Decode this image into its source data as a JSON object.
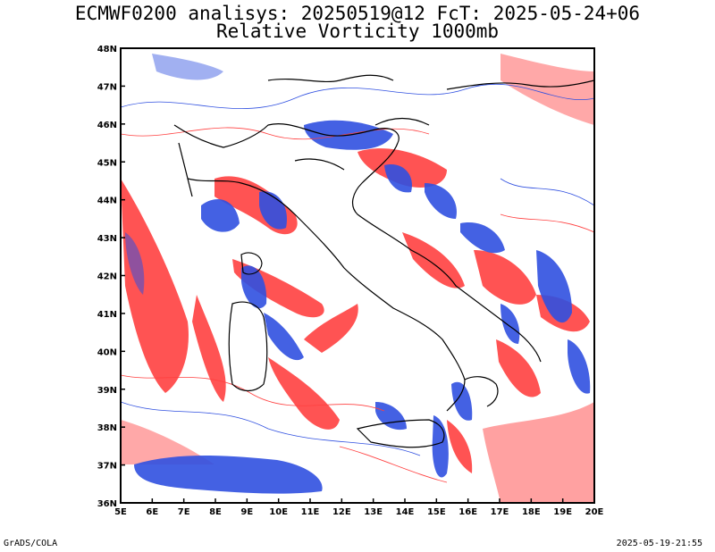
{
  "title_line1": "ECMWF0200 analisys: 20250519@12 FcT: 2025-05-24+06",
  "title_line2": "Relative Vorticity 1000mb",
  "footer_left": "GrADS/COLA",
  "footer_right": "2025-05-19-21:55",
  "colors": {
    "positive": "#ff4040",
    "negative": "#3050e0",
    "border": "#000000",
    "zero": "#c060c0"
  },
  "map": {
    "lon_ticks": [
      "5E",
      "6E",
      "7E",
      "8E",
      "9E",
      "10E",
      "11E",
      "12E",
      "13E",
      "14E",
      "15E",
      "16E",
      "17E",
      "18E",
      "19E",
      "20E"
    ],
    "lat_ticks": [
      "48N",
      "47N",
      "46N",
      "45N",
      "44N",
      "43N",
      "42N",
      "41N",
      "40N",
      "39N",
      "38N",
      "37N",
      "36N"
    ]
  }
}
